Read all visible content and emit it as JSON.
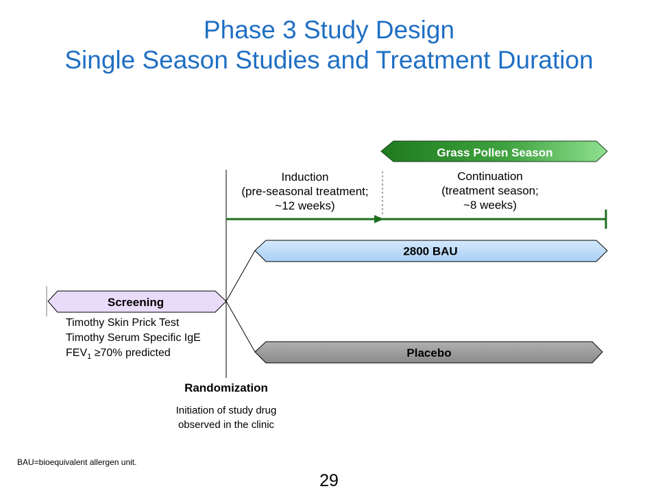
{
  "title": {
    "line1": "Phase 3 Study Design",
    "line2": "Single Season Studies and Treatment Duration"
  },
  "season_label": "Grass Pollen Season",
  "induction": {
    "line1": "Induction",
    "line2": "(pre-seasonal treatment;",
    "line3": "~12 weeks)"
  },
  "continuation": {
    "line1": "Continuation",
    "line2": "(treatment season;",
    "line3": "~8 weeks)"
  },
  "arms": {
    "active": "2800 BAU",
    "placebo": "Placebo"
  },
  "screening": {
    "label": "Screening",
    "criteria": {
      "c1": "Timothy Skin Prick Test",
      "c2": "Timothy Serum Specific IgE",
      "c3_pre": "FEV",
      "c3_sub": "1",
      "c3_post": " ≥70% predicted"
    }
  },
  "randomization": {
    "title": "Randomization",
    "desc1": "Initiation of study drug",
    "desc2": "observed in the clinic"
  },
  "footnote": "BAU=bioequivalent allergen unit.",
  "page_number": "29",
  "colors": {
    "title": "#1f6fc4",
    "season_dark": "#1e7b1e",
    "season_light": "#90e090",
    "timeline_arrow": "#1e6e1e",
    "active_arm": "#b8d8f8",
    "placebo_arm": "#9a9a9a",
    "screening": "#e8dcfa"
  }
}
